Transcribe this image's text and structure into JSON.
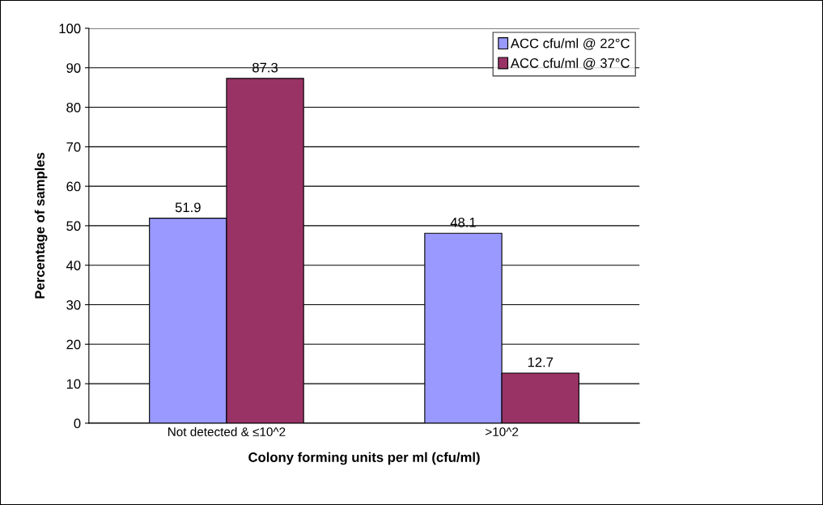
{
  "chart_data": {
    "type": "bar",
    "xlabel": "Colony forming units per ml (cfu/ml)",
    "ylabel": "Percentage of samples",
    "categories": [
      "Not detected & ≤10^2",
      ">10^2"
    ],
    "series": [
      {
        "name": "ACC cfu/ml @ 22°C",
        "color": "#9999ff",
        "values": [
          51.9,
          48.1
        ]
      },
      {
        "name": "ACC cfu/ml @ 37°C",
        "color": "#993366",
        "values": [
          87.3,
          12.7
        ]
      }
    ],
    "ylim": [
      0,
      100
    ],
    "yticks": [
      0,
      10,
      20,
      30,
      40,
      50,
      60,
      70,
      80,
      90,
      100
    ],
    "grid": "y",
    "legend": "top right",
    "data_labels": true
  }
}
